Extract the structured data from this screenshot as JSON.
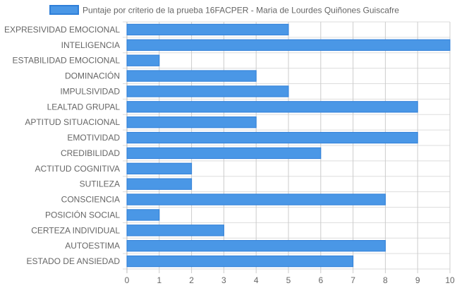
{
  "chart_data": {
    "type": "bar",
    "orientation": "horizontal",
    "legend": {
      "placement": "top",
      "entries": [
        "Puntaje por criterio de la prueba 16FACPER - Maria de Lourdes Quiñones Guiscafre"
      ]
    },
    "series": [
      {
        "name": "Puntaje por criterio de la prueba 16FACPER - Maria de Lourdes Quiñones Guiscafre",
        "color": "#4a97e6",
        "border_color": "#2f7fd8",
        "values": [
          5,
          10,
          1,
          4,
          5,
          9,
          4,
          9,
          6,
          2,
          2,
          8,
          1,
          3,
          8,
          7
        ]
      }
    ],
    "categories": [
      "EXPRESIVIDAD EMOCIONAL",
      "INTELIGENCIA",
      "ESTABILIDAD EMOCIONAL",
      "DOMINACIÓN",
      "IMPULSIVIDAD",
      "LEALTAD GRUPAL",
      "APTITUD SITUACIONAL",
      "EMOTIVIDAD",
      "CREDIBILIDAD",
      "ACTITUD COGNITIVA",
      "SUTILEZA",
      "CONSCIENCIA",
      "POSICIÓN SOCIAL",
      "CERTEZA INDIVIDUAL",
      "AUTOESTIMA",
      "ESTADO DE ANSIEDAD"
    ],
    "x_ticks": [
      "0",
      "1",
      "2",
      "3",
      "4",
      "5",
      "6",
      "7",
      "8",
      "9",
      "10"
    ],
    "xlim": [
      0,
      10
    ],
    "grid": true,
    "text_color": "#666666",
    "grid_color": "#dddddd"
  }
}
